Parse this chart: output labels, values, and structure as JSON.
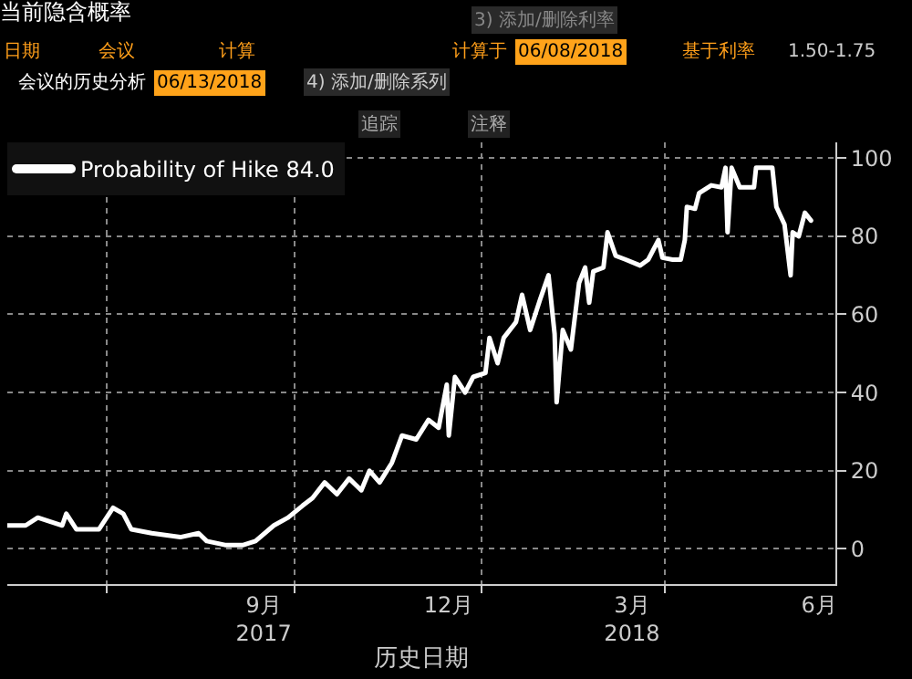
{
  "chart_data": {
    "type": "line",
    "title": "当前隐含概率",
    "xlabel": "历史日期",
    "annotations": [
      "3) 添加/删除利率",
      "日期",
      "会议",
      "计算",
      "计算于",
      "06/08/2018",
      "基于利率",
      "1.50-1.75",
      "会议的历史分析",
      "06/13/2018",
      "4) 添加/删除系列",
      "追踪",
      "注释"
    ],
    "x": [
      "2017-05-13",
      "2017-05-22",
      "2017-05-28",
      "2017-06-09",
      "2017-06-11",
      "2017-06-16",
      "2017-06-27",
      "2017-07-04",
      "2017-07-09",
      "2017-07-13",
      "2017-07-23",
      "2017-08-06",
      "2017-08-15",
      "2017-08-19",
      "2017-08-28",
      "2017-09-06",
      "2017-09-12",
      "2017-09-21",
      "2017-09-28",
      "2017-10-05",
      "2017-10-10",
      "2017-10-16",
      "2017-10-22",
      "2017-10-28",
      "2017-11-03",
      "2017-11-07",
      "2017-11-12",
      "2017-11-18",
      "2017-11-23",
      "2017-11-30",
      "2017-12-06",
      "2017-12-11",
      "2017-12-15",
      "2017-12-16",
      "2017-12-19",
      "2017-12-24",
      "2017-12-28",
      "2018-01-03",
      "2018-01-05",
      "2018-01-09",
      "2018-01-12",
      "2018-01-18",
      "2018-01-21",
      "2018-01-25",
      "2018-01-30",
      "2018-02-03",
      "2018-02-06",
      "2018-02-07",
      "2018-02-10",
      "2018-02-14",
      "2018-02-18",
      "2018-02-21",
      "2018-02-23",
      "2018-02-25",
      "2018-03-02",
      "2018-03-04",
      "2018-03-08",
      "2018-03-13",
      "2018-03-20",
      "2018-03-24",
      "2018-03-29",
      "2018-03-31",
      "2018-04-05",
      "2018-04-09",
      "2018-04-11",
      "2018-04-12",
      "2018-04-16",
      "2018-04-18",
      "2018-04-24",
      "2018-04-29",
      "2018-05-01",
      "2018-05-02",
      "2018-05-04",
      "2018-05-08",
      "2018-05-15",
      "2018-05-16",
      "2018-05-24",
      "2018-05-26",
      "2018-05-30",
      "2018-06-02",
      "2018-06-03",
      "2018-06-06",
      "2018-06-09",
      "2018-06-12"
    ],
    "series": [
      {
        "name": "Probability of Hike 84.0",
        "color": "#ffffff",
        "values": [
          6,
          6,
          8,
          6,
          9,
          5,
          5,
          10.5,
          9,
          5,
          4,
          3,
          4,
          2,
          1,
          1,
          2,
          6,
          8,
          11,
          13,
          17,
          14,
          18,
          15,
          20,
          17,
          22,
          29,
          28,
          33,
          31,
          42,
          29,
          44,
          40,
          44,
          45,
          54,
          47.5,
          54,
          58,
          65,
          56,
          64,
          70,
          55,
          37.5,
          56,
          51,
          68,
          72,
          63,
          71,
          72,
          81,
          75,
          74,
          72.5,
          74,
          79,
          74.5,
          74,
          74,
          79,
          87.5,
          87,
          91,
          93,
          92.5,
          97.5,
          81,
          97.5,
          92.5,
          92.5,
          97.5,
          97.5,
          87.5,
          83,
          70,
          81,
          80,
          86,
          84
        ]
      }
    ],
    "xlim": [
      "2017-05-13",
      "2018-06-24"
    ],
    "xticks": [
      {
        "value": "2017-07-01",
        "label": null
      },
      {
        "value": "2017-09-16",
        "label": "9月\n2017"
      },
      {
        "value": "2017-10-01",
        "label": null
      },
      {
        "value": "2017-12-16",
        "label": "12月"
      },
      {
        "value": "2018-01-01",
        "label": null
      },
      {
        "value": "2018-03-16",
        "label": "3月\n2018"
      },
      {
        "value": "2018-04-01",
        "label": null
      },
      {
        "value": "2018-06-16",
        "label": "6月"
      }
    ],
    "ylim": [
      -9,
      104
    ],
    "yticks": [
      0,
      20,
      40,
      60,
      80,
      100
    ],
    "grid": true,
    "legend": "top left",
    "marker": "none",
    "line_style": "solid"
  }
}
